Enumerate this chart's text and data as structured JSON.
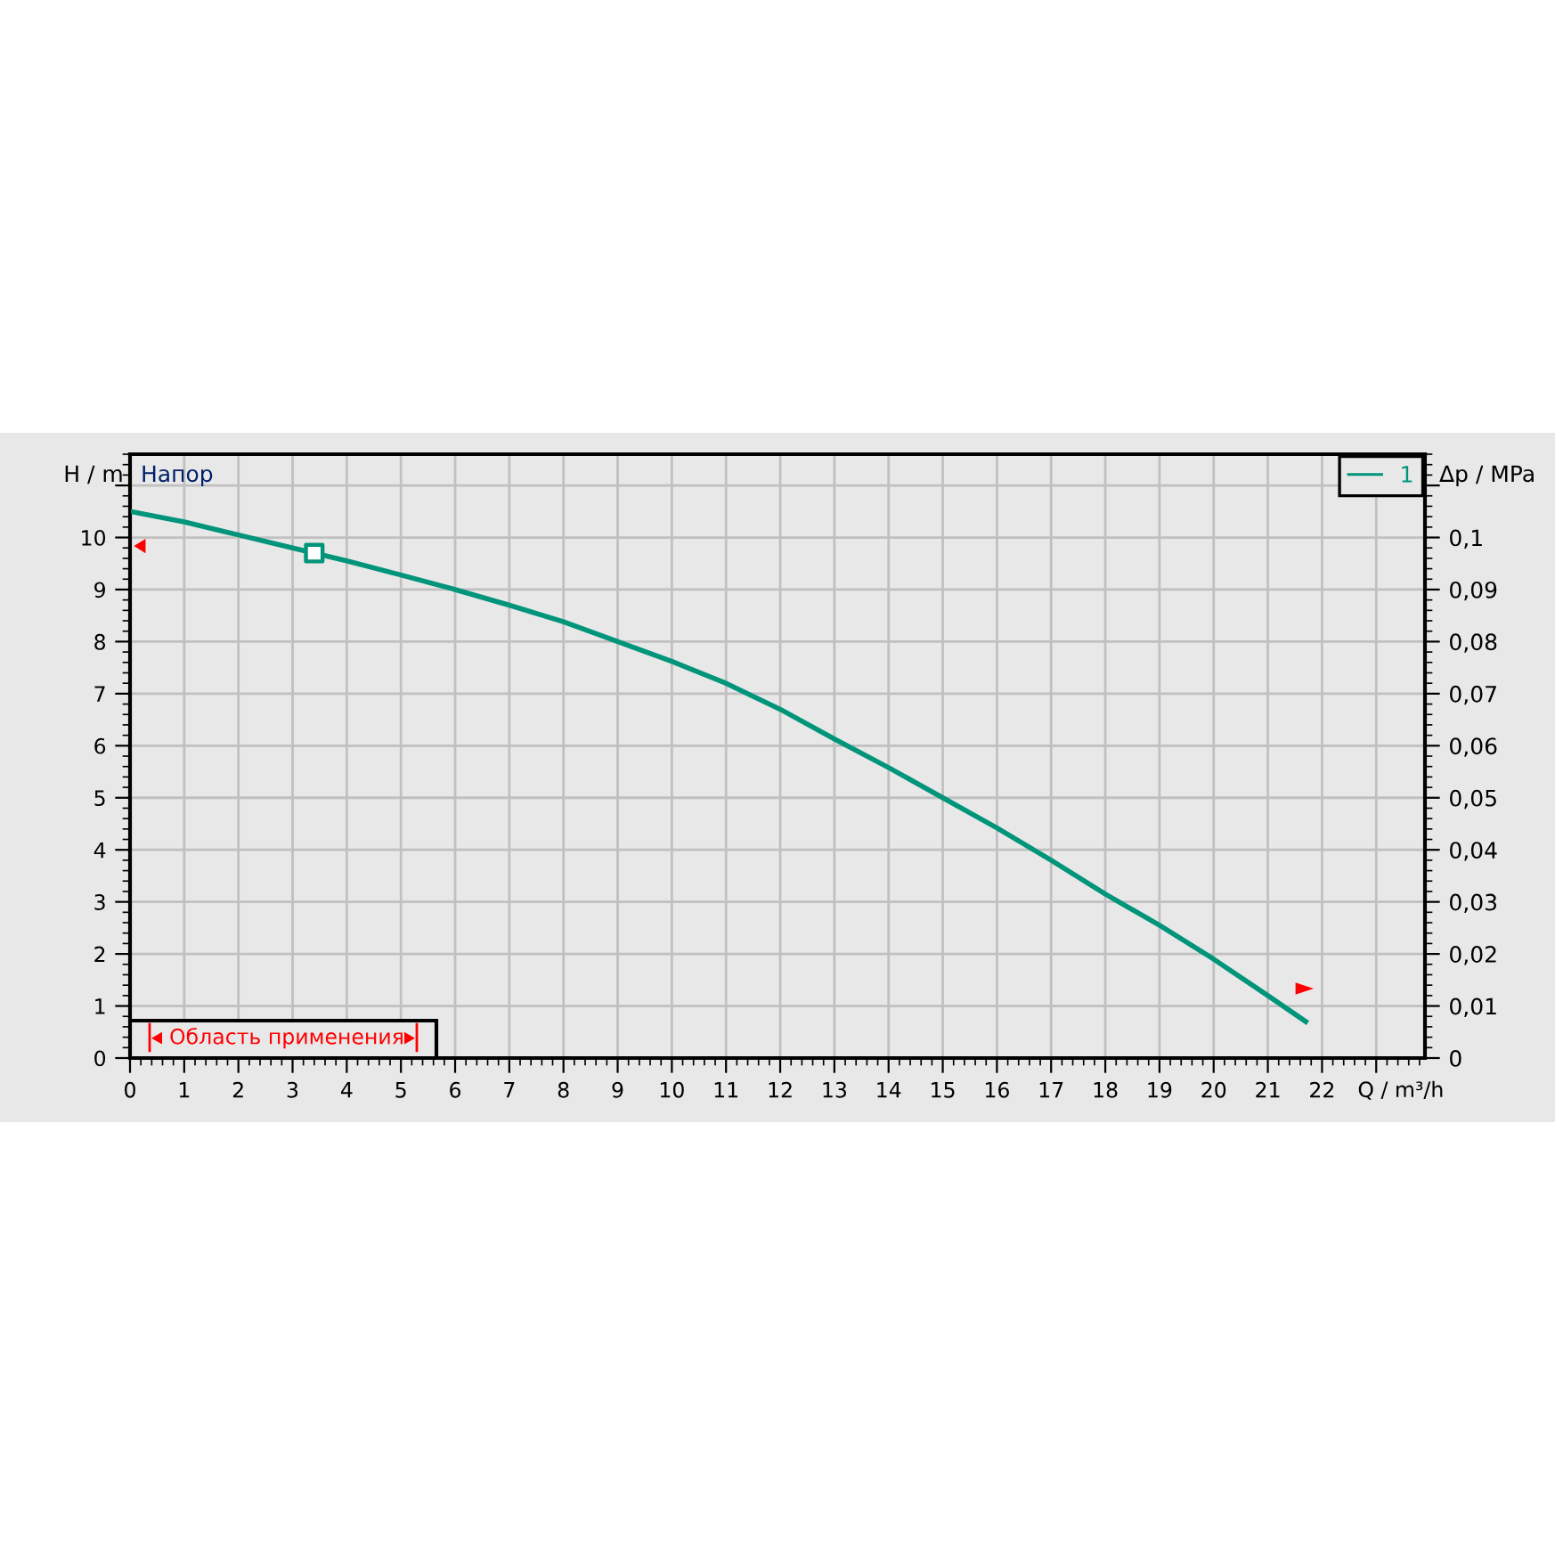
{
  "chart_data": {
    "type": "line",
    "xlabel": "Q / m³/h",
    "ylabel": "H / m",
    "y2label": "Δp / MPa",
    "annotations": [
      "Напор",
      "Область применения"
    ],
    "series": [
      {
        "name": "1",
        "color": "#00957a",
        "marker": "none",
        "x": [
          0,
          1,
          2,
          3,
          4,
          5,
          6,
          7,
          8,
          9,
          10,
          11,
          12,
          13,
          14,
          15,
          16,
          17,
          18,
          19,
          20,
          21,
          21.7
        ],
        "values": [
          10.5,
          10.3,
          10.05,
          9.8,
          9.55,
          9.28,
          9.0,
          8.7,
          8.38,
          8.0,
          7.62,
          7.2,
          6.7,
          6.13,
          5.58,
          5.0,
          4.42,
          3.8,
          3.15,
          2.55,
          1.9,
          1.2,
          0.7
        ]
      },
      {
        "color": "#00957a",
        "type": "scatter",
        "marker": "square",
        "x": [
          3.4
        ],
        "values": [
          9.7
        ]
      }
    ],
    "xlim": [
      0,
      23.9
    ],
    "xticks": [
      0,
      1,
      2,
      3,
      4,
      5,
      6,
      7,
      8,
      9,
      10,
      11,
      12,
      13,
      14,
      15,
      16,
      17,
      18,
      19,
      20,
      21,
      22,
      {
        "value": 23,
        "label": null
      }
    ],
    "ylim": [
      0,
      11.6
    ],
    "yticks": [
      0,
      1,
      2,
      3,
      4,
      5,
      6,
      7,
      8,
      9,
      10,
      {
        "value": 11,
        "label": null
      }
    ],
    "y2lim": [
      0,
      0.116
    ],
    "y2ticks": [
      0,
      {
        "value": 0.01,
        "label": "0,01"
      },
      {
        "value": 0.02,
        "label": "0,02"
      },
      {
        "value": 0.03,
        "label": "0,03"
      },
      {
        "value": 0.04,
        "label": "0,04"
      },
      {
        "value": 0.05,
        "label": "0,05"
      },
      {
        "value": 0.06,
        "label": "0,06"
      },
      {
        "value": 0.07,
        "label": "0,07"
      },
      {
        "value": 0.08,
        "label": "0,08"
      },
      {
        "value": 0.09,
        "label": "0,09"
      },
      {
        "value": 0.1,
        "label": "0,1"
      },
      {
        "value": 0.11,
        "label": null
      }
    ],
    "grid": true,
    "legend": "top right"
  }
}
